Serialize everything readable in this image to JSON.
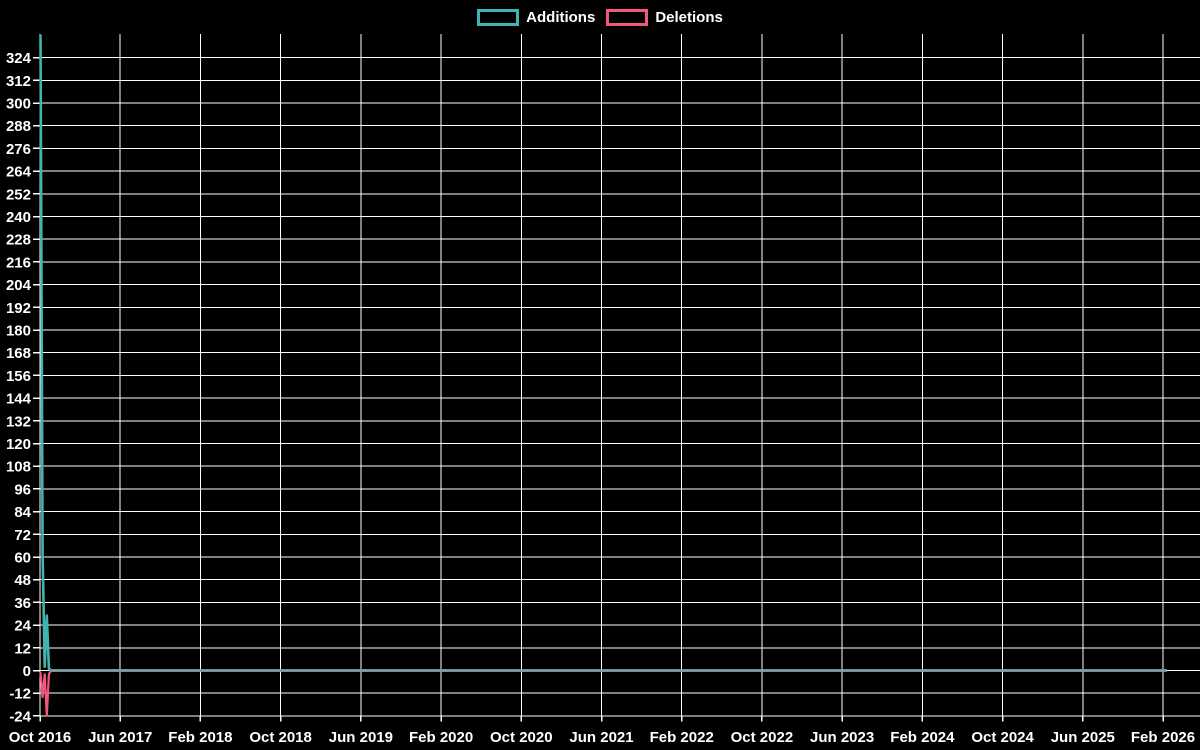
{
  "chart_data": {
    "type": "line",
    "title": "",
    "background_color": "#000000",
    "grid_color": "#ffffff",
    "text_color": "#ffffff",
    "grid": true,
    "legend_position": "top-center",
    "x_start_label": "Oct 2016",
    "x_tick_labels": [
      "Oct 2016",
      "Jun 2017",
      "Feb 2018",
      "Oct 2018",
      "Jun 2019",
      "Feb 2020",
      "Oct 2020",
      "Jun 2021",
      "Feb 2022",
      "Oct 2022",
      "Jun 2023",
      "Feb 2024",
      "Oct 2024",
      "Jun 2025",
      "Feb 2026"
    ],
    "x_tick_interval_months": 8,
    "y_tick_labels": [
      324,
      312,
      300,
      288,
      276,
      264,
      252,
      240,
      228,
      216,
      204,
      192,
      180,
      168,
      156,
      144,
      132,
      120,
      108,
      96,
      84,
      72,
      60,
      48,
      36,
      24,
      12,
      0,
      -12,
      -24
    ],
    "y_tick_step": 12,
    "y_range": [
      -25,
      336
    ],
    "series": [
      {
        "name": "Additions",
        "color": "#40B4AE",
        "values_weekly_from_start": [
          336,
          62,
          2,
          29,
          1,
          0
        ],
        "rest_value": 0
      },
      {
        "name": "Deletions",
        "color": "#F2587A",
        "values_weekly_from_start": [
          -1,
          -14,
          -2,
          -24,
          -2,
          0
        ],
        "rest_value": 0
      }
    ],
    "overlap_zero_line_color": "#7FA2A8"
  }
}
